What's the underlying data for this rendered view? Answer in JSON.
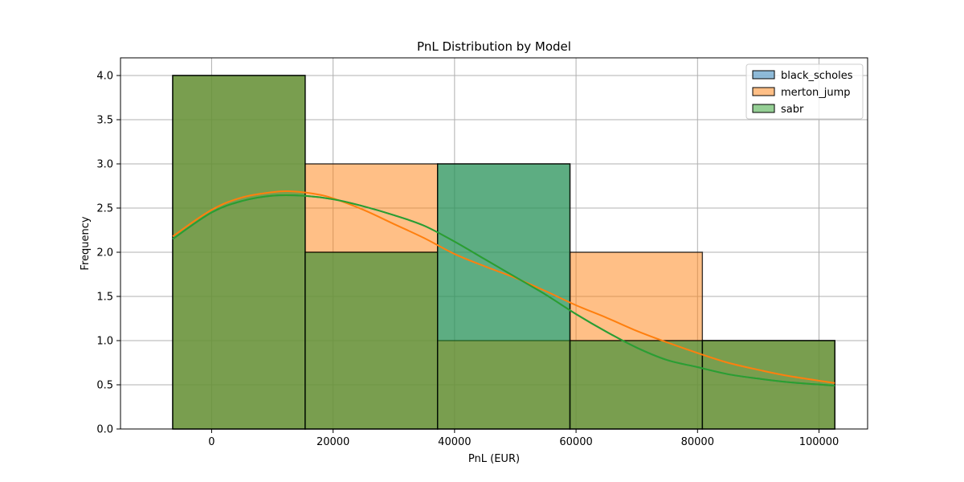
{
  "chart_data": {
    "type": "histogram",
    "title": "PnL Distribution by Model",
    "xlabel": "PnL (EUR)",
    "ylabel": "Frequency",
    "xlim": [
      -15000,
      108000
    ],
    "ylim": [
      0,
      4.2
    ],
    "grid": true,
    "legend_position": "top-right",
    "bin_edges": [
      -6400,
      15400,
      37200,
      59000,
      80800,
      102600
    ],
    "x_ticks": [
      0,
      20000,
      40000,
      60000,
      80000,
      100000
    ],
    "x_tick_labels": [
      "0",
      "20000",
      "40000",
      "60000",
      "80000",
      "100000"
    ],
    "y_ticks": [
      0,
      0.5,
      1.0,
      1.5,
      2.0,
      2.5,
      3.0,
      3.5,
      4.0
    ],
    "y_tick_labels": [
      "0.0",
      "0.5",
      "1.0",
      "1.5",
      "2.0",
      "2.5",
      "3.0",
      "3.5",
      "4.0"
    ],
    "series": [
      {
        "name": "black_scholes",
        "color": "#1f77b4",
        "counts": [
          4,
          2,
          3,
          1,
          1
        ],
        "kde": [
          [
            -6400,
            2.15
          ],
          [
            0,
            2.45
          ],
          [
            5000,
            2.58
          ],
          [
            10000,
            2.64
          ],
          [
            15000,
            2.64
          ],
          [
            20000,
            2.6
          ],
          [
            25000,
            2.52
          ],
          [
            30000,
            2.42
          ],
          [
            35000,
            2.3
          ],
          [
            40000,
            2.12
          ],
          [
            45000,
            1.92
          ],
          [
            50000,
            1.72
          ],
          [
            55000,
            1.52
          ],
          [
            60000,
            1.3
          ],
          [
            65000,
            1.1
          ],
          [
            70000,
            0.92
          ],
          [
            75000,
            0.78
          ],
          [
            80000,
            0.7
          ],
          [
            85000,
            0.62
          ],
          [
            90000,
            0.57
          ],
          [
            95000,
            0.53
          ],
          [
            102600,
            0.49
          ]
        ]
      },
      {
        "name": "merton_jump",
        "color": "#ff7f0e",
        "counts": [
          4,
          3,
          1,
          2,
          1
        ],
        "kde": [
          [
            -6400,
            2.18
          ],
          [
            0,
            2.48
          ],
          [
            5000,
            2.62
          ],
          [
            10000,
            2.68
          ],
          [
            13000,
            2.69
          ],
          [
            17000,
            2.66
          ],
          [
            20000,
            2.61
          ],
          [
            25000,
            2.48
          ],
          [
            30000,
            2.32
          ],
          [
            35000,
            2.16
          ],
          [
            40000,
            1.98
          ],
          [
            45000,
            1.84
          ],
          [
            50000,
            1.71
          ],
          [
            55000,
            1.56
          ],
          [
            60000,
            1.4
          ],
          [
            65000,
            1.26
          ],
          [
            70000,
            1.11
          ],
          [
            75000,
            0.98
          ],
          [
            80000,
            0.86
          ],
          [
            85000,
            0.75
          ],
          [
            90000,
            0.67
          ],
          [
            95000,
            0.6
          ],
          [
            102600,
            0.52
          ]
        ]
      },
      {
        "name": "sabr",
        "color": "#2ca02c",
        "counts": [
          4,
          2,
          3,
          1,
          1
        ],
        "kde": [
          [
            -6400,
            2.15
          ],
          [
            0,
            2.45
          ],
          [
            5000,
            2.58
          ],
          [
            10000,
            2.64
          ],
          [
            15000,
            2.64
          ],
          [
            20000,
            2.6
          ],
          [
            25000,
            2.52
          ],
          [
            30000,
            2.42
          ],
          [
            35000,
            2.3
          ],
          [
            40000,
            2.12
          ],
          [
            45000,
            1.92
          ],
          [
            50000,
            1.72
          ],
          [
            55000,
            1.52
          ],
          [
            60000,
            1.3
          ],
          [
            65000,
            1.1
          ],
          [
            70000,
            0.92
          ],
          [
            75000,
            0.78
          ],
          [
            80000,
            0.7
          ],
          [
            85000,
            0.62
          ],
          [
            90000,
            0.57
          ],
          [
            95000,
            0.53
          ],
          [
            102600,
            0.49
          ]
        ]
      }
    ]
  }
}
